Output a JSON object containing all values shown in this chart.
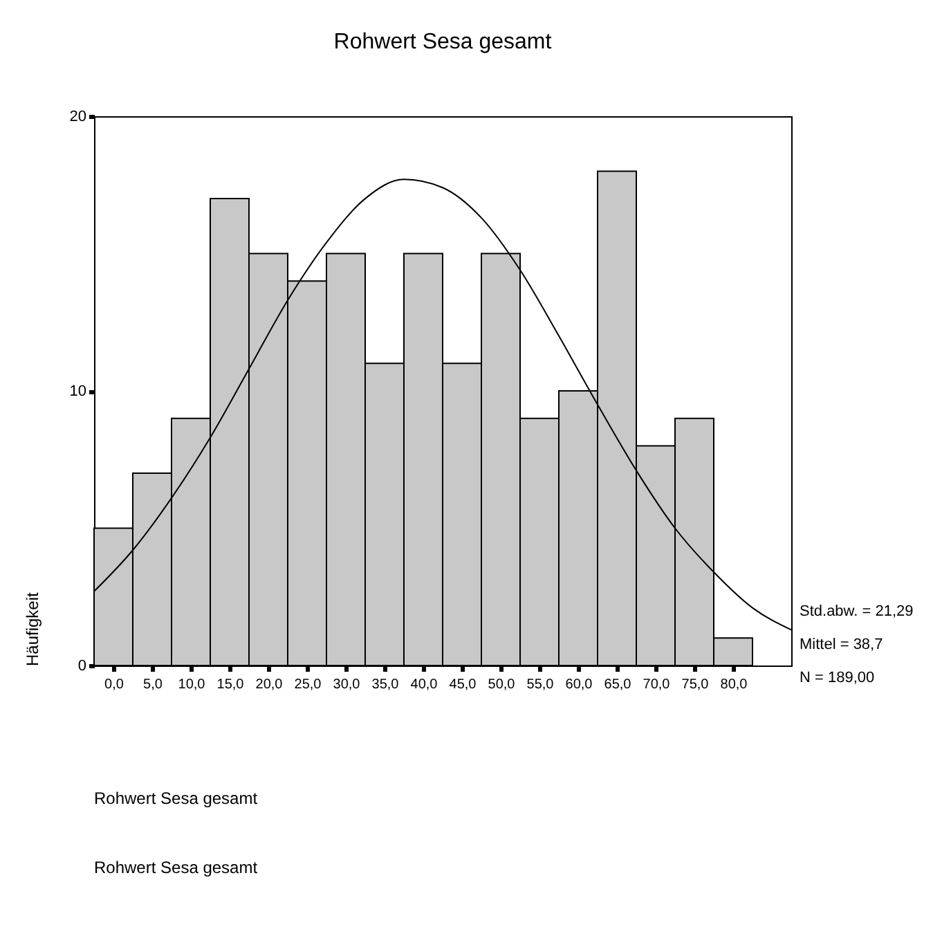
{
  "chart_data": {
    "type": "histogram",
    "title": "Rohwert Sesa gesamt",
    "ylabel": "Häufigkeit",
    "series": [
      {
        "type": "histogram",
        "color": "#c8c8c8",
        "bins": [
          -2.5,
          2.5,
          7.5,
          12.5,
          17.5,
          22.5,
          27.5,
          32.5,
          37.5,
          42.5,
          47.5,
          52.5,
          57.5,
          62.5,
          67.5,
          72.5,
          77.5,
          82.5
        ],
        "values": [
          5,
          7,
          9,
          17,
          15,
          14,
          15,
          11,
          15,
          11,
          15,
          9,
          10,
          18,
          8,
          9,
          1
        ]
      },
      {
        "type": "line",
        "color": "#000000",
        "x": [
          -2.5,
          2.5,
          7.5,
          12.5,
          17.5,
          22.5,
          27.5,
          32.5,
          37.5,
          42.5,
          47.5,
          52.5,
          57.5,
          62.5,
          67.5,
          72.5,
          77.5,
          82.5,
          87.5
        ],
        "values": [
          2.7,
          4.2,
          6.1,
          8.3,
          10.8,
          13.3,
          15.4,
          17.0,
          17.7,
          17.4,
          16.3,
          14.4,
          12.0,
          9.5,
          7.1,
          5.0,
          3.4,
          2.1,
          1.3
        ]
      }
    ],
    "xlim": [
      -2.5,
      87.5
    ],
    "ylim": [
      0,
      20
    ],
    "yticks": [
      0,
      10,
      20
    ],
    "xticks": [
      {
        "value": 0,
        "label": "0,0"
      },
      {
        "value": 5,
        "label": "5,0"
      },
      {
        "value": 10,
        "label": "10,0"
      },
      {
        "value": 15,
        "label": "15,0"
      },
      {
        "value": 20,
        "label": "20,0"
      },
      {
        "value": 25,
        "label": "25,0"
      },
      {
        "value": 30,
        "label": "30,0"
      },
      {
        "value": 35,
        "label": "35,0"
      },
      {
        "value": 40,
        "label": "40,0"
      },
      {
        "value": 45,
        "label": "45,0"
      },
      {
        "value": 50,
        "label": "50,0"
      },
      {
        "value": 55,
        "label": "55,0"
      },
      {
        "value": 60,
        "label": "60,0"
      },
      {
        "value": 65,
        "label": "65,0"
      },
      {
        "value": 70,
        "label": "70,0"
      },
      {
        "value": 75,
        "label": "75,0"
      },
      {
        "value": 80,
        "label": "80,0"
      }
    ],
    "annotations": [
      "Std.abw. = 21,29",
      "Mittel = 38,7",
      "N = 189,00",
      "Rohwert Sesa gesamt",
      "Rohwert Sesa gesamt"
    ]
  }
}
